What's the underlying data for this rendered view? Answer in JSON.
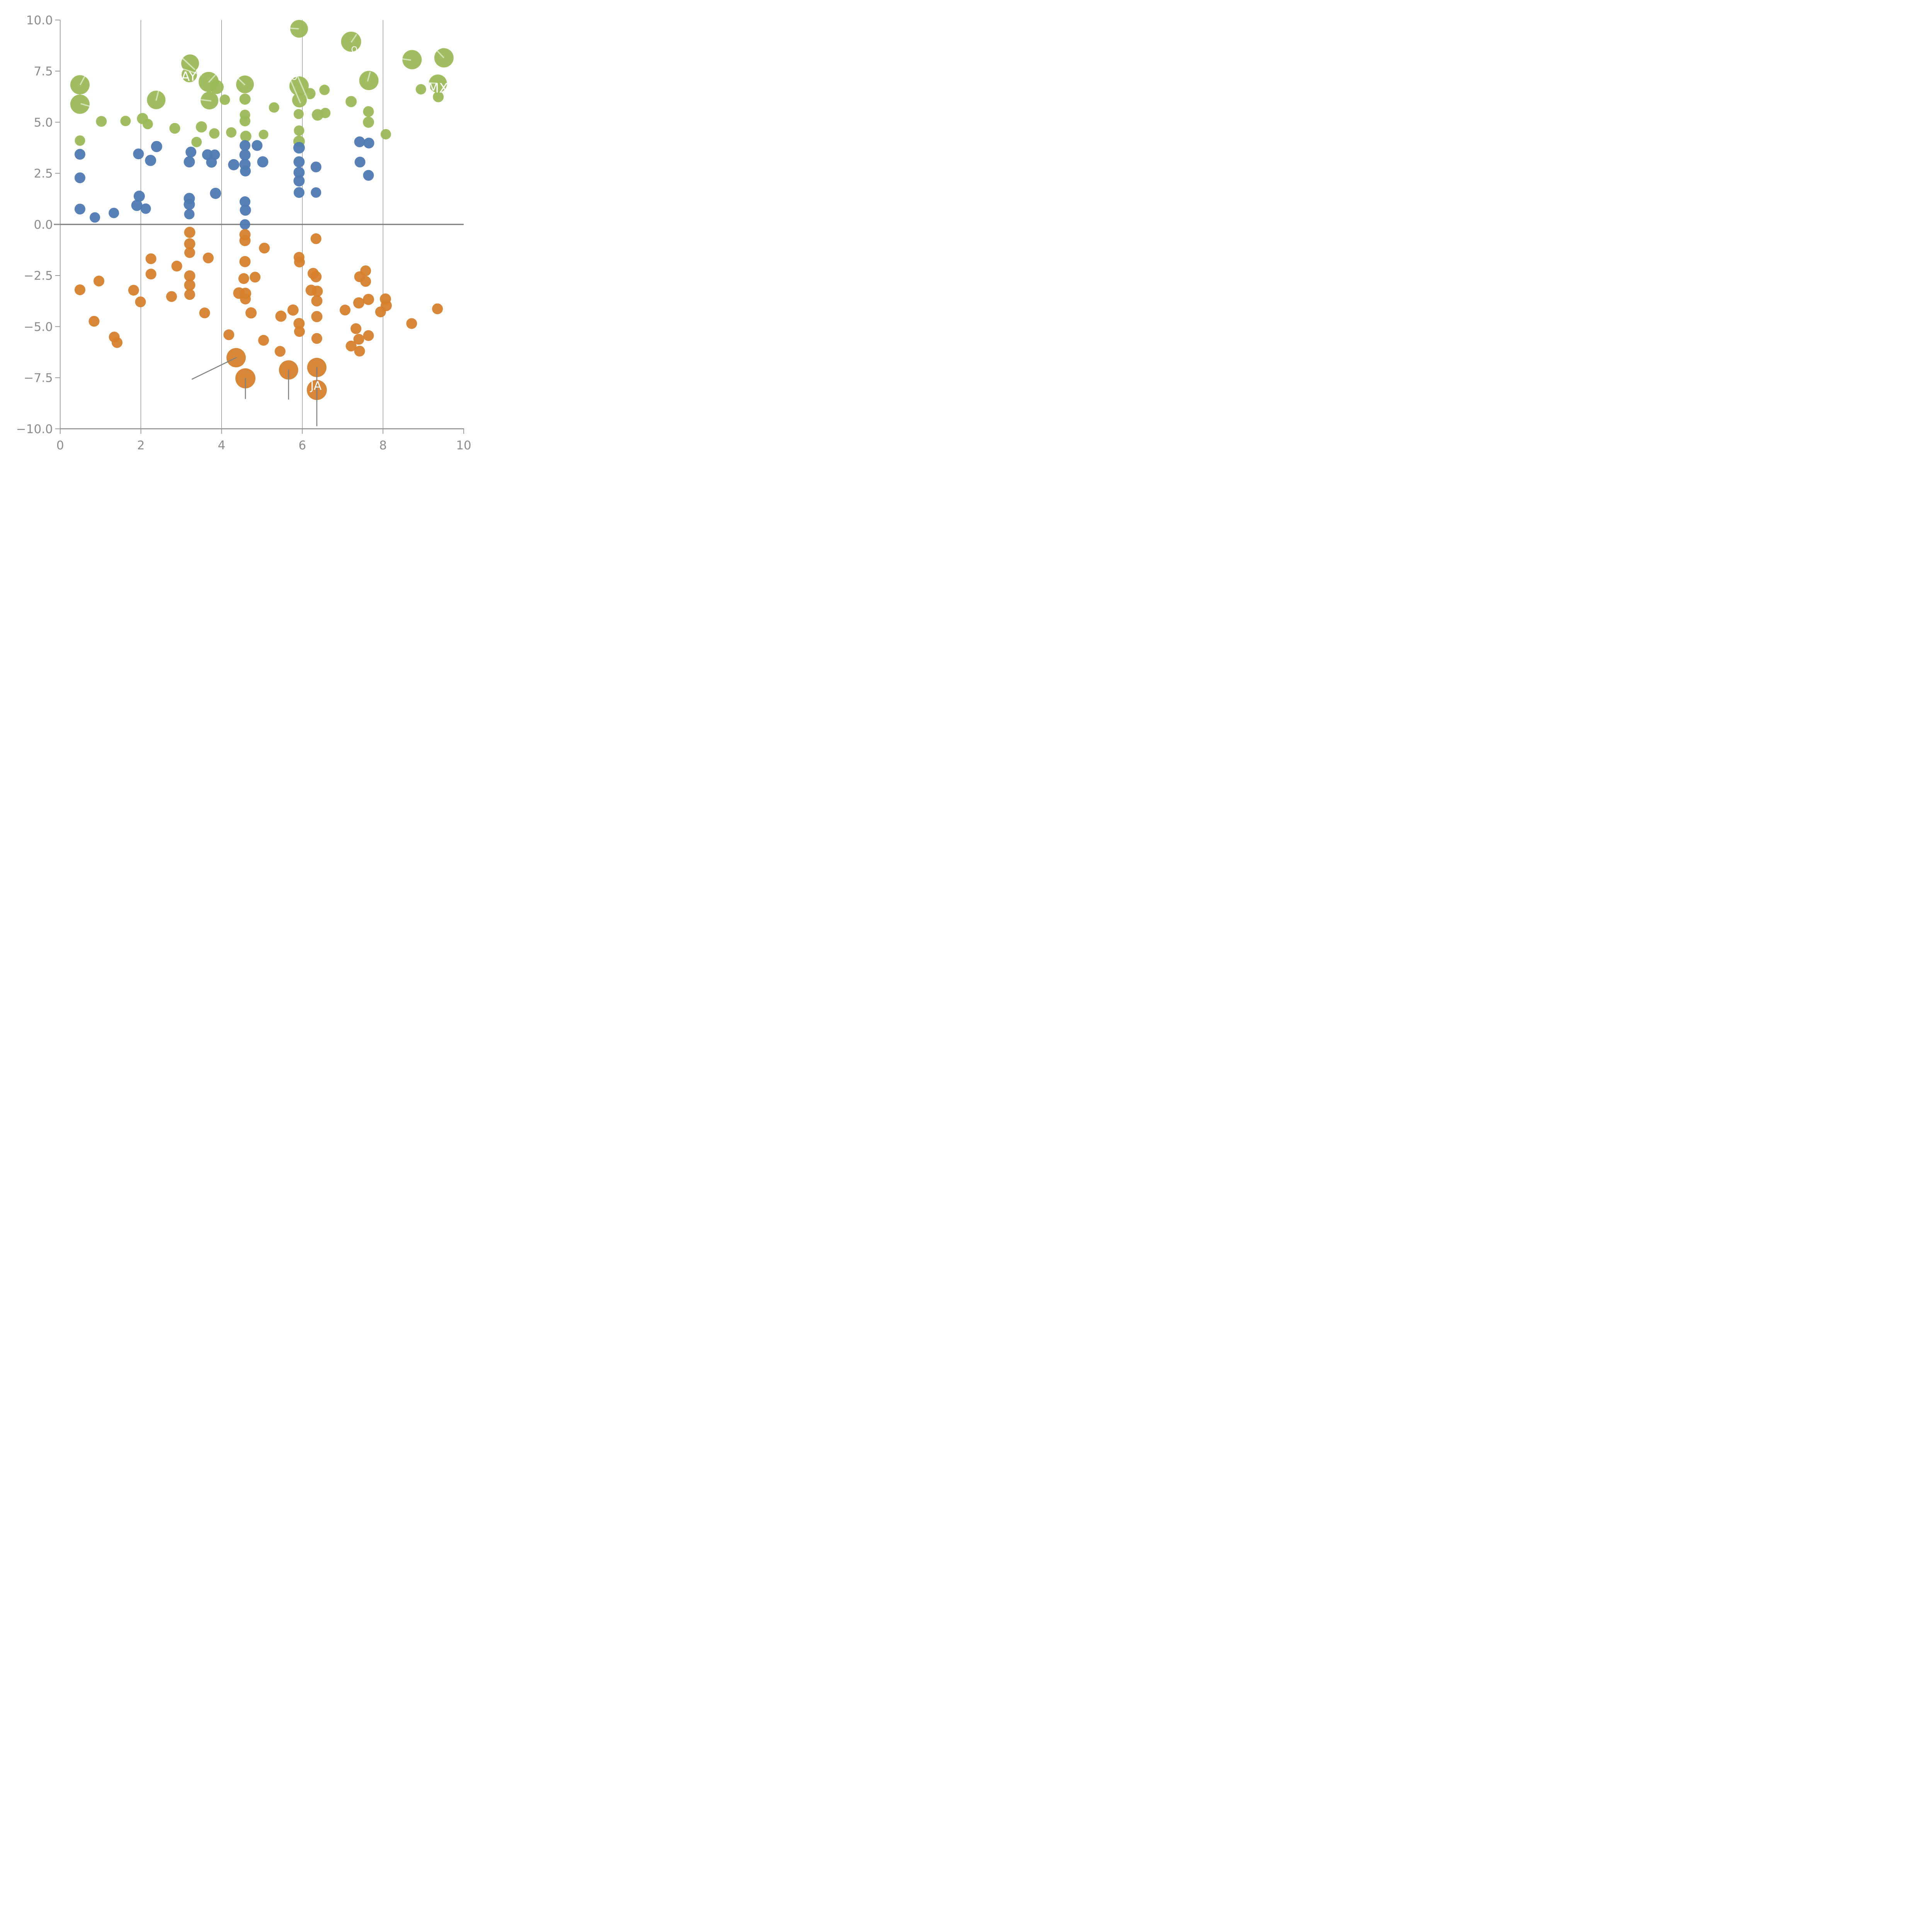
{
  "chart_data": {
    "type": "scatter",
    "title": "",
    "xlabel": "",
    "ylabel": "",
    "xlim": [
      0,
      10
    ],
    "ylim": [
      -10,
      10
    ],
    "grid": "vertical-only",
    "legend_position": "none",
    "colors": {
      "green_series": "#9bba59",
      "blue_series": "#4e7ab2",
      "orange_series": "#d6802c",
      "axis": "#999999",
      "tick_label": "#8c8c8c",
      "gridline": "#4a4a4a",
      "zero_line": "#7f7f7f",
      "gray_leader": "#808080",
      "white_leader": "rgba(255,255,255,0.55)"
    },
    "axes": {
      "x_ticks": [
        0,
        2,
        4,
        6,
        8,
        10
      ],
      "x_tick_labels": [
        "0",
        "2",
        "4",
        "6",
        "8",
        "10"
      ],
      "y_ticks": [
        10.0,
        7.5,
        5.0,
        2.5,
        0.0,
        -2.5,
        -5.0,
        -7.5,
        -10.0
      ],
      "y_tick_labels": [
        "10.0",
        "7.5",
        "5.0",
        "2.5",
        "0.0",
        "−2.5",
        "−5.0",
        "−7.5",
        "−10.0"
      ],
      "x_gridlines": [
        2,
        4,
        6,
        8
      ],
      "zero_line_y": 0
    },
    "series": [
      {
        "name": "green_series",
        "color": "#9bba59",
        "points": [
          [
            0.49,
            6.83,
            25
          ],
          [
            0.49,
            5.88,
            25
          ],
          [
            0.49,
            4.1,
            13.5
          ],
          [
            1.02,
            5.04,
            14
          ],
          [
            1.62,
            5.06,
            13.5
          ],
          [
            2.04,
            5.18,
            14.5
          ],
          [
            2.17,
            4.91,
            13.5
          ],
          [
            2.38,
            6.09,
            24
          ],
          [
            2.84,
            4.7,
            14
          ],
          [
            3.22,
            7.88,
            23
          ],
          [
            3.2,
            7.33,
            20
          ],
          [
            3.68,
            6.97,
            26
          ],
          [
            3.88,
            6.72,
            18
          ],
          [
            3.7,
            6.06,
            23
          ],
          [
            4.58,
            6.85,
            23
          ],
          [
            4.08,
            6.1,
            13.5
          ],
          [
            4.58,
            6.13,
            14.5
          ],
          [
            4.58,
            5.36,
            13.5
          ],
          [
            4.58,
            5.06,
            14
          ],
          [
            5.3,
            5.72,
            13.5
          ],
          [
            5.91,
            5.4,
            13
          ],
          [
            5.92,
            9.57,
            23
          ],
          [
            5.92,
            6.77,
            25
          ],
          [
            5.93,
            6.08,
            19
          ],
          [
            6.19,
            6.4,
            14.5
          ],
          [
            6.38,
            5.36,
            15
          ],
          [
            6.57,
            5.45,
            13.5
          ],
          [
            6.55,
            6.58,
            13.5
          ],
          [
            7.21,
            8.94,
            26
          ],
          [
            8.72,
            8.06,
            25
          ],
          [
            9.51,
            8.15,
            25
          ],
          [
            9.36,
            6.89,
            23.5
          ],
          [
            8.94,
            6.61,
            13.5
          ],
          [
            9.37,
            6.24,
            14
          ],
          [
            7.65,
            7.04,
            25
          ],
          [
            7.21,
            6.01,
            14.5
          ],
          [
            7.64,
            5.52,
            14
          ],
          [
            7.64,
            5.0,
            14.5
          ],
          [
            8.07,
            4.41,
            13.5
          ],
          [
            3.5,
            4.77,
            14.5
          ],
          [
            3.82,
            4.45,
            13.5
          ],
          [
            4.24,
            4.5,
            13.5
          ],
          [
            4.6,
            4.31,
            14.5
          ],
          [
            5.04,
            4.4,
            12.5
          ],
          [
            3.38,
            4.03,
            13.5
          ],
          [
            5.92,
            4.59,
            13.5
          ],
          [
            5.92,
            4.06,
            15
          ]
        ]
      },
      {
        "name": "blue_series",
        "color": "#4e7ab2",
        "points": [
          [
            0.49,
            3.43,
            14
          ],
          [
            0.49,
            2.28,
            14
          ],
          [
            0.49,
            0.75,
            14
          ],
          [
            0.86,
            0.34,
            13.5
          ],
          [
            1.33,
            0.56,
            13.5
          ],
          [
            1.94,
            3.45,
            14
          ],
          [
            2.24,
            3.13,
            14.5
          ],
          [
            1.96,
            1.38,
            14.5
          ],
          [
            1.9,
            0.93,
            14.5
          ],
          [
            2.12,
            0.77,
            13.5
          ],
          [
            2.39,
            3.81,
            14.5
          ],
          [
            3.24,
            3.54,
            14
          ],
          [
            3.2,
            3.06,
            14.5
          ],
          [
            3.2,
            1.27,
            14.5
          ],
          [
            3.2,
            0.98,
            14.5
          ],
          [
            3.2,
            0.5,
            13.5
          ],
          [
            3.65,
            3.41,
            14
          ],
          [
            3.83,
            3.41,
            13.5
          ],
          [
            3.75,
            3.04,
            14
          ],
          [
            4.3,
            2.92,
            14.5
          ],
          [
            4.58,
            3.86,
            14
          ],
          [
            4.58,
            3.4,
            14.5
          ],
          [
            4.58,
            2.94,
            14.5
          ],
          [
            4.59,
            2.61,
            14
          ],
          [
            4.88,
            3.86,
            14
          ],
          [
            5.02,
            3.06,
            14.5
          ],
          [
            3.85,
            1.52,
            14.5
          ],
          [
            4.58,
            1.11,
            14
          ],
          [
            4.59,
            0.7,
            14.5
          ],
          [
            4.58,
            0.0,
            13.5
          ],
          [
            5.92,
            3.75,
            15
          ],
          [
            5.92,
            3.06,
            14.5
          ],
          [
            5.92,
            2.54,
            14.5
          ],
          [
            5.92,
            2.13,
            14.5
          ],
          [
            5.92,
            1.56,
            14
          ],
          [
            6.34,
            2.81,
            14
          ],
          [
            6.34,
            1.56,
            13.5
          ],
          [
            7.42,
            4.04,
            14
          ],
          [
            7.65,
            3.98,
            14
          ],
          [
            7.43,
            3.05,
            14
          ],
          [
            7.64,
            2.4,
            14
          ]
        ]
      },
      {
        "name": "orange_series",
        "color": "#d6802c",
        "points": [
          [
            3.21,
            -0.39,
            14.5
          ],
          [
            3.21,
            -0.95,
            14.5
          ],
          [
            3.21,
            -1.38,
            14
          ],
          [
            2.25,
            -1.68,
            14
          ],
          [
            2.25,
            -2.43,
            14
          ],
          [
            2.89,
            -2.04,
            14
          ],
          [
            3.21,
            -2.52,
            14.5
          ],
          [
            3.21,
            -2.97,
            14.5
          ],
          [
            3.21,
            -3.43,
            14
          ],
          [
            0.49,
            -3.2,
            14
          ],
          [
            0.96,
            -2.77,
            14
          ],
          [
            1.82,
            -3.22,
            14
          ],
          [
            1.99,
            -3.79,
            14
          ],
          [
            2.76,
            -3.53,
            14
          ],
          [
            0.84,
            -4.74,
            14
          ],
          [
            1.34,
            -5.51,
            14
          ],
          [
            1.41,
            -5.78,
            14
          ],
          [
            3.58,
            -4.33,
            14
          ],
          [
            3.67,
            -1.64,
            14
          ],
          [
            4.58,
            -0.5,
            14.5
          ],
          [
            4.58,
            -0.79,
            14.5
          ],
          [
            5.06,
            -1.16,
            14
          ],
          [
            4.58,
            -1.82,
            14.5
          ],
          [
            5.92,
            -1.61,
            14
          ],
          [
            5.93,
            -1.84,
            14
          ],
          [
            6.34,
            -0.7,
            14
          ],
          [
            4.55,
            -2.65,
            14
          ],
          [
            4.83,
            -2.58,
            14
          ],
          [
            4.43,
            -3.36,
            15
          ],
          [
            4.59,
            -3.38,
            15
          ],
          [
            4.59,
            -3.65,
            14
          ],
          [
            4.73,
            -4.33,
            14.5
          ],
          [
            4.18,
            -5.4,
            14
          ],
          [
            5.04,
            -5.67,
            14
          ],
          [
            5.47,
            -4.49,
            14.5
          ],
          [
            5.77,
            -4.19,
            14.5
          ],
          [
            5.92,
            -4.85,
            14.5
          ],
          [
            5.93,
            -5.24,
            14
          ],
          [
            5.45,
            -6.21,
            14
          ],
          [
            6.36,
            -3.74,
            14.5
          ],
          [
            6.36,
            -4.51,
            14.5
          ],
          [
            6.36,
            -5.58,
            14
          ],
          [
            6.27,
            -2.4,
            14.5
          ],
          [
            6.34,
            -2.56,
            14.5
          ],
          [
            6.22,
            -3.22,
            14.5
          ],
          [
            6.37,
            -3.27,
            14.5
          ],
          [
            7.06,
            -4.19,
            14
          ],
          [
            7.4,
            -3.84,
            14.5
          ],
          [
            7.64,
            -3.67,
            14.5
          ],
          [
            8.06,
            -3.65,
            14.5
          ],
          [
            8.08,
            -3.97,
            14.5
          ],
          [
            7.94,
            -4.28,
            14
          ],
          [
            7.33,
            -5.1,
            14
          ],
          [
            7.64,
            -5.44,
            14
          ],
          [
            7.4,
            -5.62,
            14
          ],
          [
            7.21,
            -5.95,
            14
          ],
          [
            7.42,
            -6.2,
            14
          ],
          [
            8.71,
            -4.85,
            14
          ],
          [
            9.35,
            -4.13,
            14
          ],
          [
            7.42,
            -2.56,
            14
          ],
          [
            7.57,
            -2.27,
            14
          ],
          [
            7.57,
            -2.79,
            14
          ],
          [
            4.36,
            -6.52,
            25
          ],
          [
            4.59,
            -7.53,
            26
          ],
          [
            5.66,
            -7.12,
            25
          ],
          [
            6.36,
            -7.0,
            25
          ],
          [
            6.36,
            -8.1,
            26
          ]
        ]
      }
    ],
    "white_leader_lines": [
      [
        0.62,
        7.28,
        0.5,
        6.85
      ],
      [
        0.52,
        5.9,
        0.73,
        5.78
      ],
      [
        2.44,
        6.55,
        2.38,
        6.08
      ],
      [
        2.95,
        8.28,
        3.33,
        7.58
      ],
      [
        3.05,
        7.6,
        3.5,
        7.32
      ],
      [
        3.84,
        7.3,
        3.69,
        6.97
      ],
      [
        3.5,
        6.1,
        3.73,
        6.04
      ],
      [
        4.37,
        7.22,
        4.57,
        6.84
      ],
      [
        5.57,
        9.62,
        5.9,
        9.57
      ],
      [
        5.68,
        7.2,
        5.95,
        5.95
      ],
      [
        5.85,
        7.4,
        6.12,
        6.18
      ],
      [
        7.34,
        9.28,
        7.22,
        8.93
      ],
      [
        8.4,
        8.12,
        8.68,
        8.04
      ],
      [
        9.28,
        8.62,
        9.5,
        8.17
      ],
      [
        9.04,
        6.94,
        9.33,
        6.9
      ],
      [
        7.68,
        7.44,
        7.62,
        7.02
      ]
    ],
    "gray_leader_lines": [
      [
        4.36,
        -6.52,
        3.27,
        -7.57
      ],
      [
        4.59,
        -7.53,
        4.59,
        -8.52
      ],
      [
        5.66,
        -7.12,
        5.66,
        -8.55
      ],
      [
        6.36,
        -7.0,
        6.36,
        -9.85
      ]
    ],
    "bubble_labels": [
      {
        "text": "AY",
        "x": 3.19,
        "y": 7.25,
        "size": 33
      },
      {
        "text": "MX",
        "x": 9.36,
        "y": 6.68,
        "size": 34
      },
      {
        "text": "JA",
        "x": 6.34,
        "y": -7.88,
        "size": 30
      },
      {
        "text": "O",
        "x": 5.8,
        "y": 7.22,
        "size": 21
      },
      {
        "text": "O",
        "x": 7.29,
        "y": 8.56,
        "size": 21
      }
    ]
  }
}
